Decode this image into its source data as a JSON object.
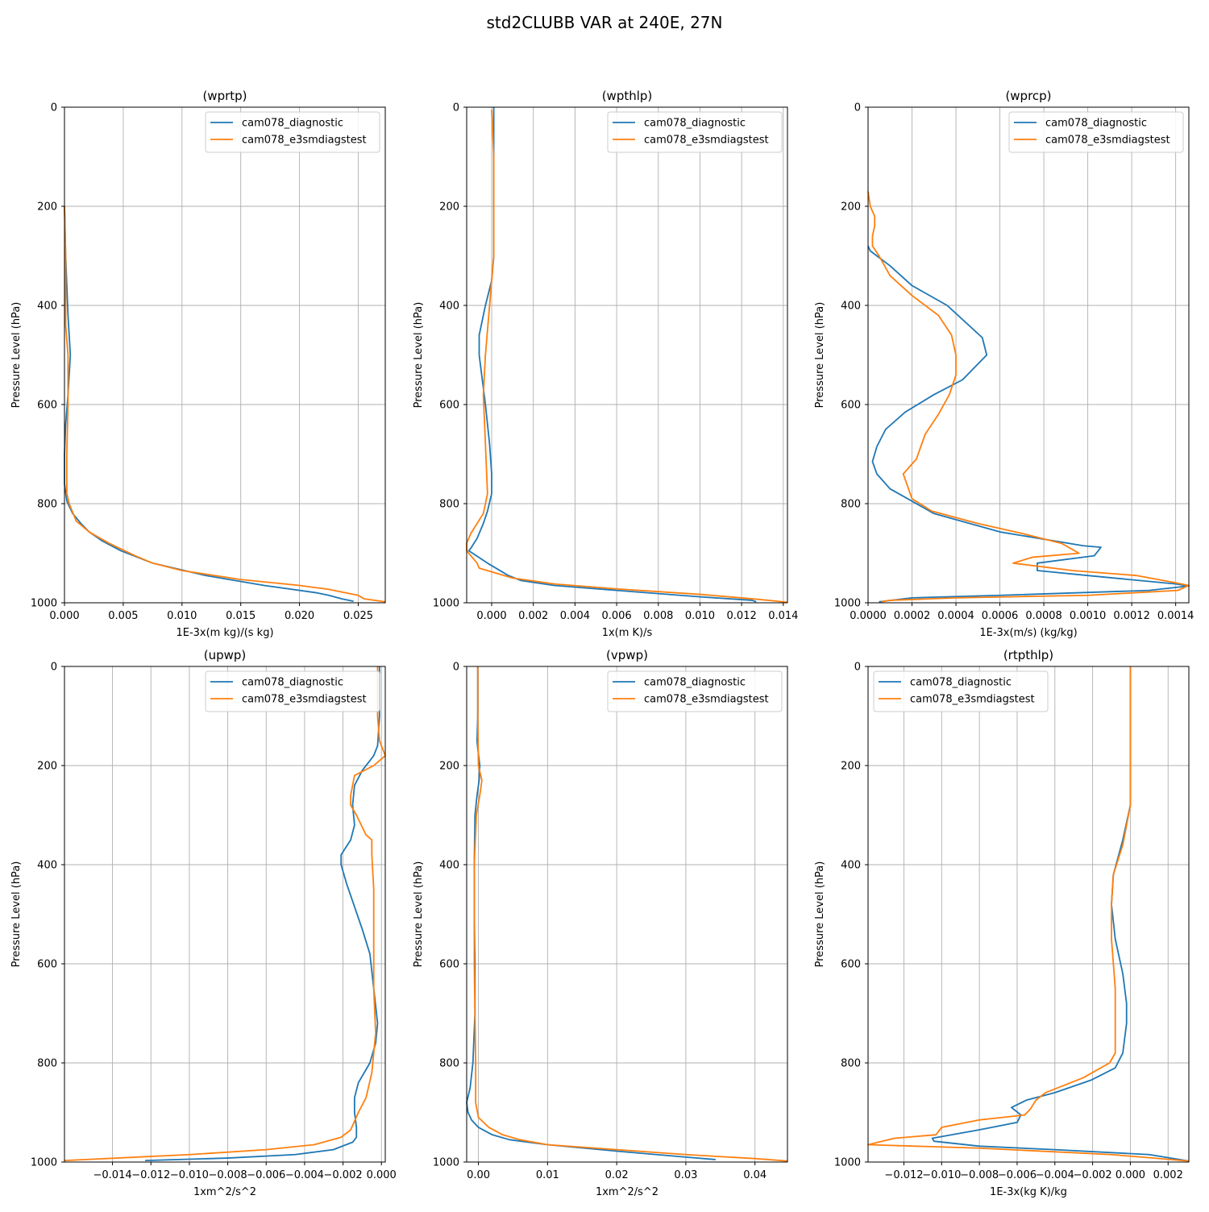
{
  "figure": {
    "title": "std2CLUBB VAR at 240E, 27N"
  },
  "colors": {
    "diagnostic": "#1f77b4",
    "e3smdiagstest": "#ff7f0e",
    "grid": "#b0b0b0",
    "axis": "#000000"
  },
  "chart_data": [
    {
      "type": "line",
      "title": "(wprtp)",
      "xlabel": "1E-3x(m kg)/(s kg)",
      "ylabel": "Pressure Level (hPa)",
      "xlim": [
        0,
        0.0273
      ],
      "ylim": [
        1000,
        0
      ],
      "xticks": [
        0,
        0.005,
        0.01,
        0.015,
        0.02,
        0.025
      ],
      "xtick_labels": [
        "0.000",
        "0.005",
        "0.010",
        "0.015",
        "0.020",
        "0.025"
      ],
      "yticks": [
        0,
        200,
        400,
        600,
        800,
        1000
      ],
      "ytick_labels": [
        "0",
        "200",
        "400",
        "600",
        "800",
        "1000"
      ],
      "legend": {
        "loc": "upper right",
        "entries": [
          "cam078_diagnostic",
          "cam078_e3smdiagstest"
        ]
      },
      "series": [
        {
          "name": "cam078_diagnostic",
          "color": "#1f77b4",
          "x": [
            0,
            0.0001,
            0.0003,
            0.0005,
            0.0003,
            0.0001,
            0,
            0,
            0.0002,
            0.0007,
            0.0014,
            0.0021,
            0.0032,
            0.0048,
            0.0075,
            0.012,
            0.017,
            0.0215,
            0.0225,
            0.0236,
            0.0246
          ],
          "p": [
            200,
            300,
            420,
            500,
            580,
            640,
            700,
            760,
            795,
            820,
            840,
            857,
            875,
            895,
            920,
            945,
            965,
            980,
            985,
            992,
            997
          ]
        },
        {
          "name": "cam078_e3smdiagstest",
          "color": "#ff7f0e",
          "x": [
            0,
            0.0001,
            0.0001,
            0.0003,
            0.0003,
            0.0002,
            0.0002,
            0.0004,
            0.001,
            0.0021,
            0.0038,
            0.006,
            0.0075,
            0.01,
            0.015,
            0.02,
            0.0225,
            0.025,
            0.0255,
            0.0273
          ],
          "p": [
            200,
            300,
            440,
            500,
            600,
            700,
            780,
            800,
            835,
            857,
            880,
            905,
            920,
            935,
            953,
            965,
            973,
            985,
            992,
            998
          ]
        }
      ]
    },
    {
      "type": "line",
      "title": "(wpthlp)",
      "xlabel": "1x(m K)/s",
      "ylabel": "Pressure Level (hPa)",
      "xlim": [
        -0.0012,
        0.0142
      ],
      "ylim": [
        1000,
        0
      ],
      "xticks": [
        0,
        0.002,
        0.004,
        0.006,
        0.008,
        0.01,
        0.012,
        0.014
      ],
      "xtick_labels": [
        "0.000",
        "0.002",
        "0.004",
        "0.006",
        "0.008",
        "0.010",
        "0.012",
        "0.014"
      ],
      "yticks": [
        0,
        200,
        400,
        600,
        800,
        1000
      ],
      "ytick_labels": [
        "0",
        "200",
        "400",
        "600",
        "800",
        "1000"
      ],
      "legend": {
        "loc": "upper right",
        "entries": [
          "cam078_diagnostic",
          "cam078_e3smdiagstest"
        ]
      },
      "series": [
        {
          "name": "cam078_diagnostic",
          "color": "#1f77b4",
          "x": [
            0.0001,
            0.0001,
            0.0001,
            0.0,
            -0.0003,
            -0.0006,
            -0.0006,
            -0.0003,
            -0.0001,
            0.0,
            0.0,
            -0.0002,
            -0.0004,
            -0.0007,
            -0.001,
            -0.0011,
            -0.0002,
            0.0008,
            0.0014,
            0.003,
            0.006,
            0.01,
            0.0125,
            0.0127
          ],
          "p": [
            0,
            150,
            300,
            350,
            400,
            460,
            500,
            600,
            680,
            740,
            780,
            815,
            840,
            870,
            890,
            895,
            920,
            945,
            955,
            965,
            975,
            988,
            995,
            998
          ]
        },
        {
          "name": "cam078_e3smdiagstest",
          "color": "#ff7f0e",
          "x": [
            0.0,
            0.0001,
            0.0001,
            0.0001,
            -0.0001,
            -0.0003,
            -0.0004,
            -0.0003,
            -0.0002,
            -0.0004,
            -0.001,
            -0.0012,
            -0.0012,
            -0.0007,
            -0.0006,
            0.001,
            0.003,
            0.006,
            0.01,
            0.0125,
            0.0135,
            0.0142
          ],
          "p": [
            5,
            100,
            200,
            300,
            400,
            500,
            580,
            680,
            780,
            820,
            860,
            880,
            895,
            920,
            930,
            950,
            962,
            972,
            983,
            992,
            996,
            999
          ]
        }
      ]
    },
    {
      "type": "line",
      "title": "(wprcp)",
      "xlabel": "1E-3x(m/s) (kg/kg)",
      "ylabel": "Pressure Level (hPa)",
      "xlim": [
        0,
        0.00146
      ],
      "ylim": [
        1000,
        0
      ],
      "xticks": [
        0,
        0.0002,
        0.0004,
        0.0006,
        0.0008,
        0.001,
        0.0012,
        0.0014
      ],
      "xtick_labels": [
        "0.0000",
        "0.0002",
        "0.0004",
        "0.0006",
        "0.0008",
        "0.0010",
        "0.0012",
        "0.0014"
      ],
      "yticks": [
        0,
        200,
        400,
        600,
        800,
        1000
      ],
      "ytick_labels": [
        "0",
        "200",
        "400",
        "600",
        "800",
        "1000"
      ],
      "legend": {
        "loc": "upper right",
        "entries": [
          "cam078_diagnostic",
          "cam078_e3smdiagstest"
        ]
      },
      "series": [
        {
          "name": "cam078_diagnostic",
          "color": "#1f77b4",
          "x": [
            0,
            1e-05,
            4e-05,
            0.0001,
            0.0002,
            0.00036,
            0.00052,
            0.00054,
            0.00043,
            0.0003,
            0.00017,
            8e-05,
            4e-05,
            2e-05,
            4e-05,
            0.0001,
            0.0003,
            0.0006,
            0.00098,
            0.00106,
            0.00103,
            0.00077,
            0.00077,
            0.001,
            0.0014,
            0.00146,
            0.00128,
            0.0006,
            0.0002,
            5e-05
          ],
          "p": [
            280,
            290,
            300,
            320,
            360,
            400,
            465,
            500,
            550,
            580,
            615,
            650,
            685,
            715,
            740,
            770,
            820,
            857,
            885,
            888,
            905,
            920,
            935,
            945,
            962,
            966,
            975,
            985,
            990,
            998
          ]
        },
        {
          "name": "cam078_e3smdiagstest",
          "color": "#ff7f0e",
          "x": [
            0,
            1e-05,
            3e-05,
            3e-05,
            2e-05,
            2e-05,
            5e-05,
            0.0001,
            0.0002,
            0.00032,
            0.00038,
            0.0004,
            0.0004,
            0.00037,
            0.00032,
            0.00026,
            0.00022,
            0.00016,
            0.0002,
            0.00029,
            0.0005,
            0.0007,
            0.00088,
            0.00096,
            0.00075,
            0.00066,
            0.00093,
            0.00122,
            0.00138,
            0.00146,
            0.00141,
            0.001,
            0.0004,
            0.0001,
            6e-05
          ],
          "p": [
            170,
            200,
            220,
            240,
            260,
            280,
            300,
            340,
            380,
            420,
            460,
            500,
            540,
            580,
            620,
            660,
            710,
            740,
            790,
            815,
            840,
            860,
            880,
            900,
            908,
            920,
            935,
            945,
            958,
            965,
            975,
            985,
            990,
            995,
            998
          ]
        }
      ]
    },
    {
      "type": "line",
      "title": "(upwp)",
      "xlabel": "1xm^2/s^2",
      "ylabel": "Pressure Level (hPa)",
      "xlim": [
        -0.0165,
        0.0002
      ],
      "ylim": [
        1000,
        0
      ],
      "xticks": [
        -0.014,
        -0.012,
        -0.01,
        -0.008,
        -0.006,
        -0.004,
        -0.002,
        0
      ],
      "xtick_labels": [
        "−0.014",
        "−0.012",
        "−0.010",
        "−0.008",
        "−0.006",
        "−0.004",
        "−0.002",
        "0.000"
      ],
      "yticks": [
        0,
        200,
        400,
        600,
        800,
        1000
      ],
      "ytick_labels": [
        "0",
        "200",
        "400",
        "600",
        "800",
        "1000"
      ],
      "legend": {
        "loc": "upper right",
        "entries": [
          "cam078_diagnostic",
          "cam078_e3smdiagstest"
        ]
      },
      "series": [
        {
          "name": "cam078_diagnostic",
          "color": "#1f77b4",
          "x": [
            -0.0001,
            -0.0001,
            -0.0002,
            -0.0004,
            -0.001,
            -0.0014,
            -0.0015,
            -0.0014,
            -0.0016,
            -0.0021,
            -0.0021,
            -0.0018,
            -0.001,
            -0.0006,
            -0.0004,
            -0.0002,
            -0.0003,
            -0.0006,
            -0.0012,
            -0.0014,
            -0.0014,
            -0.0013,
            -0.0013,
            -0.0015,
            -0.0025,
            -0.0045,
            -0.008,
            -0.0123
          ],
          "p": [
            0,
            100,
            160,
            180,
            210,
            240,
            280,
            320,
            350,
            380,
            400,
            440,
            530,
            580,
            650,
            720,
            760,
            800,
            840,
            870,
            900,
            930,
            950,
            960,
            975,
            985,
            992,
            997
          ]
        },
        {
          "name": "cam078_e3smdiagstest",
          "color": "#ff7f0e",
          "x": [
            -0.0002,
            -0.0002,
            -0.0001,
            0.0002,
            -0.0004,
            -0.0014,
            -0.0016,
            -0.0016,
            -0.0013,
            -0.0008,
            -0.0005,
            -0.0005,
            -0.0004,
            -0.0004,
            -0.0004,
            -0.0003,
            -0.0005,
            -0.0008,
            -0.0012,
            -0.0016,
            -0.0021,
            -0.0035,
            -0.006,
            -0.01,
            -0.0165
          ],
          "p": [
            0,
            100,
            150,
            180,
            200,
            220,
            260,
            280,
            300,
            340,
            350,
            380,
            450,
            550,
            650,
            740,
            820,
            870,
            900,
            935,
            950,
            965,
            975,
            985,
            997
          ]
        }
      ]
    },
    {
      "type": "line",
      "title": "(vpwp)",
      "xlabel": "1xm^2/s^2",
      "ylabel": "Pressure Level (hPa)",
      "xlim": [
        -0.0017,
        0.0447
      ],
      "ylim": [
        1000,
        0
      ],
      "xticks": [
        0,
        0.01,
        0.02,
        0.03,
        0.04
      ],
      "xtick_labels": [
        "0.00",
        "0.01",
        "0.02",
        "0.03",
        "0.04"
      ],
      "yticks": [
        0,
        200,
        400,
        600,
        800,
        1000
      ],
      "ytick_labels": [
        "0",
        "200",
        "400",
        "600",
        "800",
        "1000"
      ],
      "legend": {
        "loc": "upper right",
        "entries": [
          "cam078_diagnostic",
          "cam078_e3smdiagstest"
        ]
      },
      "series": [
        {
          "name": "cam078_diagnostic",
          "color": "#1f77b4",
          "x": [
            -0.0001,
            -0.0001,
            -0.0002,
            -0.0001,
            0.0002,
            0.0001,
            -0.0002,
            -0.0005,
            -0.0006,
            -0.0006,
            -0.0005,
            -0.0005,
            -0.0008,
            -0.0012,
            -0.0017,
            -0.0015,
            -0.001,
            0.0,
            0.002,
            0.0045,
            0.01,
            0.02,
            0.03,
            0.0343
          ],
          "p": [
            0,
            100,
            150,
            165,
            200,
            230,
            260,
            300,
            400,
            500,
            600,
            700,
            800,
            850,
            880,
            900,
            915,
            930,
            945,
            955,
            965,
            978,
            990,
            995
          ]
        },
        {
          "name": "cam078_e3smdiagstest",
          "color": "#ff7f0e",
          "x": [
            -0.0001,
            -0.0001,
            0.0,
            0.0005,
            0.0002,
            -0.0003,
            -0.0006,
            -0.0006,
            -0.0006,
            -0.0005,
            -0.0004,
            -0.0004,
            0.0,
            0.0015,
            0.0035,
            0.006,
            0.01,
            0.02,
            0.03,
            0.04,
            0.0447
          ],
          "p": [
            0,
            100,
            200,
            230,
            260,
            300,
            400,
            500,
            600,
            700,
            800,
            880,
            910,
            930,
            945,
            955,
            965,
            975,
            985,
            993,
            998
          ]
        }
      ]
    },
    {
      "type": "line",
      "title": "(rtpthlp)",
      "xlabel": "1E-3x(kg K)/kg",
      "ylabel": "Pressure Level (hPa)",
      "xlim": [
        -0.0139,
        0.0031
      ],
      "ylim": [
        1000,
        0
      ],
      "xticks": [
        -0.012,
        -0.01,
        -0.008,
        -0.006,
        -0.004,
        -0.002,
        0,
        0.002
      ],
      "xtick_labels": [
        "−0.012",
        "−0.010",
        "−0.008",
        "−0.006",
        "−0.004",
        "−0.002",
        "0.000",
        "0.002"
      ],
      "yticks": [
        0,
        200,
        400,
        600,
        800,
        1000
      ],
      "ytick_labels": [
        "0",
        "200",
        "400",
        "600",
        "800",
        "1000"
      ],
      "legend": {
        "loc": "upper left",
        "entries": [
          "cam078_diagnostic",
          "cam078_e3smdiagstest"
        ]
      },
      "series": [
        {
          "name": "cam078_diagnostic",
          "color": "#1f77b4",
          "x": [
            0.0,
            0.0,
            0.0,
            -0.0004,
            -0.0009,
            -0.001,
            -0.0008,
            -0.0004,
            -0.0002,
            -0.0002,
            -0.0004,
            -0.0008,
            -0.0021,
            -0.004,
            -0.0055,
            -0.0063,
            -0.0058,
            -0.006,
            -0.008,
            -0.0105,
            -0.0104,
            -0.008,
            -0.004,
            0.001,
            0.0031
          ],
          "p": [
            0,
            150,
            280,
            350,
            420,
            480,
            550,
            620,
            680,
            720,
            780,
            810,
            835,
            860,
            875,
            890,
            905,
            920,
            935,
            952,
            958,
            968,
            975,
            985,
            998
          ]
        },
        {
          "name": "cam078_e3smdiagstest",
          "color": "#ff7f0e",
          "x": [
            0.0,
            0.0,
            0.0,
            -0.0004,
            -0.0009,
            -0.001,
            -0.001,
            -0.0008,
            -0.0008,
            -0.0008,
            -0.0011,
            -0.0025,
            -0.0045,
            -0.005,
            -0.0053,
            -0.0056,
            -0.008,
            -0.01,
            -0.0103,
            -0.0125,
            -0.0139,
            -0.008,
            -0.001,
            0.0031
          ],
          "p": [
            0,
            150,
            280,
            360,
            420,
            480,
            550,
            650,
            700,
            780,
            800,
            830,
            860,
            875,
            893,
            905,
            915,
            930,
            945,
            952,
            965,
            972,
            985,
            998
          ]
        }
      ]
    }
  ]
}
